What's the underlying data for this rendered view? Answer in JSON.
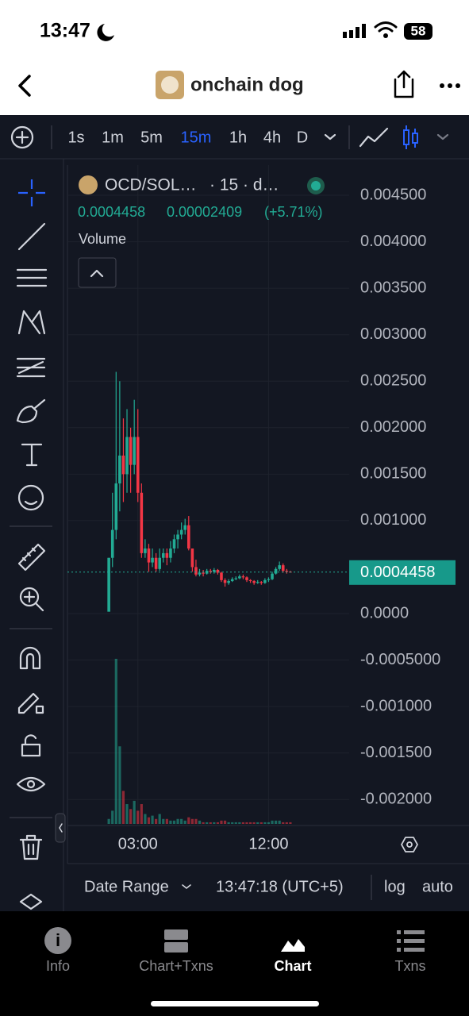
{
  "status_bar": {
    "time": "13:47",
    "battery": "58"
  },
  "header": {
    "title": "onchain dog"
  },
  "toolbar": {
    "intervals": [
      "1s",
      "1m",
      "5m",
      "15m",
      "1h",
      "4h",
      "D"
    ],
    "active_index": 3
  },
  "chart_data": {
    "type": "candlestick",
    "symbol": "OCD/SOL…",
    "interval_label": "· 15 · d…",
    "change": "0.00002409",
    "change_pct": "(+5.71%)",
    "volume_label": "Volume",
    "last_price": {
      "value": 0.0004458,
      "label": "0.0004458"
    },
    "up_color": "#22ab94",
    "down_color": "#f23645",
    "candles": [
      [
        2e-05,
        0.0006,
        3e-05,
        0.0006
      ],
      [
        0.0006,
        0.0013,
        0.0005,
        0.0009
      ],
      [
        0.0009,
        0.0026,
        0.0008,
        0.0014
      ],
      [
        0.0014,
        0.0025,
        0.0011,
        0.0017
      ],
      [
        0.0017,
        0.0021,
        0.0012,
        0.0015
      ],
      [
        0.0015,
        0.0022,
        0.0013,
        0.0019
      ],
      [
        0.0019,
        0.002,
        0.0013,
        0.0016
      ],
      [
        0.0016,
        0.0023,
        0.0015,
        0.0019
      ],
      [
        0.0019,
        0.0022,
        0.0012,
        0.0013
      ],
      [
        0.0013,
        0.0014,
        0.0006,
        0.00065
      ],
      [
        0.00065,
        0.0008,
        0.0006,
        0.0007
      ],
      [
        0.0007,
        0.00075,
        0.00045,
        0.00055
      ],
      [
        0.00055,
        0.0007,
        0.0005,
        0.0006
      ],
      [
        0.0006,
        0.00065,
        0.00045,
        0.00048
      ],
      [
        0.00048,
        0.0007,
        0.00046,
        0.0006
      ],
      [
        0.0006,
        0.0007,
        0.00055,
        0.00065
      ],
      [
        0.00065,
        0.0007,
        0.00052,
        0.0006
      ],
      [
        0.0006,
        0.00078,
        0.00055,
        0.0007
      ],
      [
        0.0007,
        0.00085,
        0.00065,
        0.0008
      ],
      [
        0.0008,
        0.0009,
        0.0007,
        0.00085
      ],
      [
        0.00085,
        0.00098,
        0.0008,
        0.0009
      ],
      [
        0.0009,
        0.00102,
        0.00085,
        0.00095
      ],
      [
        0.00095,
        0.00105,
        0.00068,
        0.0007
      ],
      [
        0.0007,
        0.0007,
        0.00045,
        0.0005
      ],
      [
        0.0005,
        0.00058,
        0.0004,
        0.00042
      ],
      [
        0.00042,
        0.00048,
        0.0004,
        0.00044
      ],
      [
        0.00044,
        0.00047,
        0.0004,
        0.00043
      ],
      [
        0.00043,
        0.00048,
        0.00042,
        0.00046
      ],
      [
        0.00046,
        0.00048,
        0.00043,
        0.00045
      ],
      [
        0.00045,
        0.00049,
        0.00043,
        0.00047
      ],
      [
        0.00047,
        0.00048,
        0.00042,
        0.00044
      ],
      [
        0.00044,
        0.00045,
        0.00034,
        0.00036
      ],
      [
        0.00036,
        0.00038,
        0.00029,
        0.00033
      ],
      [
        0.00033,
        0.00037,
        0.00031,
        0.00035
      ],
      [
        0.00035,
        0.00039,
        0.00034,
        0.00037
      ],
      [
        0.00037,
        0.0004,
        0.00036,
        0.00038
      ],
      [
        0.00038,
        0.00042,
        0.00037,
        0.0004
      ],
      [
        0.0004,
        0.00042,
        0.00037,
        0.00039
      ],
      [
        0.00039,
        0.0004,
        0.00034,
        0.00036
      ],
      [
        0.00036,
        0.00037,
        0.00033,
        0.00035
      ],
      [
        0.00035,
        0.00036,
        0.00031,
        0.00033
      ],
      [
        0.00033,
        0.00036,
        0.00032,
        0.00034
      ],
      [
        0.00034,
        0.00035,
        0.00031,
        0.00033
      ],
      [
        0.00033,
        0.00038,
        0.00032,
        0.00036
      ],
      [
        0.00036,
        0.00039,
        0.00034,
        0.00037
      ],
      [
        0.00037,
        0.00045,
        0.00036,
        0.00043
      ],
      [
        0.00043,
        0.0005,
        0.00042,
        0.00048
      ],
      [
        0.00048,
        0.00056,
        0.00046,
        0.00052
      ],
      [
        0.00052,
        0.00054,
        0.00044,
        0.00046
      ],
      [
        0.00046,
        0.00048,
        0.00043,
        0.00045
      ],
      [
        0.00045,
        0.00046,
        0.00044,
        0.0004458
      ]
    ],
    "volume": [
      3,
      8,
      100,
      47,
      20,
      12,
      9,
      14,
      8,
      12,
      6,
      4,
      5,
      3,
      6,
      3,
      3,
      2,
      2,
      3,
      3,
      2,
      4,
      3,
      3,
      2,
      1,
      1,
      1,
      1,
      1,
      2,
      2,
      1,
      1,
      1,
      1,
      1,
      1,
      1,
      1,
      1,
      1,
      1,
      1,
      2,
      2,
      2,
      1,
      1,
      1
    ],
    "ylim": [
      -0.00228,
      0.004825
    ],
    "yticks": [
      {
        "value": 0.0045,
        "label": "0.004500"
      },
      {
        "value": 0.004,
        "label": "0.004000"
      },
      {
        "value": 0.0035,
        "label": "0.003500"
      },
      {
        "value": 0.003,
        "label": "0.003000"
      },
      {
        "value": 0.0025,
        "label": "0.002500"
      },
      {
        "value": 0.002,
        "label": "0.002000"
      },
      {
        "value": 0.0015,
        "label": "0.001500"
      },
      {
        "value": 0.001,
        "label": "0.001000"
      },
      {
        "value": 0,
        "label": "0.0000"
      },
      {
        "value": -0.0005,
        "label": "-0.0005000"
      },
      {
        "value": -0.001,
        "label": "-0.001000"
      },
      {
        "value": -0.0015,
        "label": "-0.001500"
      },
      {
        "value": -0.002,
        "label": "-0.002000"
      }
    ],
    "xlim": [
      -11.4,
      66.2
    ],
    "xticks": [
      {
        "value": 8,
        "label": "03:00"
      },
      {
        "value": 44,
        "label": "12:00"
      }
    ]
  },
  "bottom_bar": {
    "date_range": "Date Range",
    "clock": "13:47:18 (UTC+5)",
    "log": "log",
    "auto": "auto"
  },
  "tabs": {
    "items": [
      "Info",
      "Chart+Txns",
      "Chart",
      "Txns"
    ],
    "active_index": 2
  }
}
